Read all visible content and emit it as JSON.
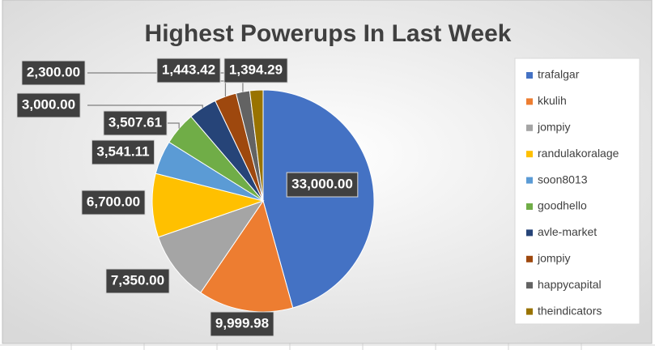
{
  "chart_data": {
    "type": "pie",
    "title": "Highest Powerups In Last Week",
    "categories": [
      "trafalgar",
      "kkulih",
      "jompiy",
      "randulakoralage",
      "soon8013",
      "goodhello",
      "avle-market",
      "jompiy",
      "happycapital",
      "theindicators"
    ],
    "values": [
      33000,
      9999.98,
      7350,
      6700,
      3541.11,
      3507.61,
      3000,
      2300,
      1443.42,
      1394.29
    ],
    "value_labels": [
      "33,000.00",
      "9,999.98",
      "7,350.00",
      "6,700.00",
      "3,541.11",
      "3,507.61",
      "3,000.00",
      "2,300.00",
      "1,443.42",
      "1,394.29"
    ],
    "colors": [
      "#4472c4",
      "#ed7d31",
      "#a5a5a5",
      "#ffc000",
      "#5b9bd5",
      "#70ad47",
      "#264478",
      "#9e480e",
      "#636363",
      "#997300"
    ],
    "legend": "right"
  }
}
